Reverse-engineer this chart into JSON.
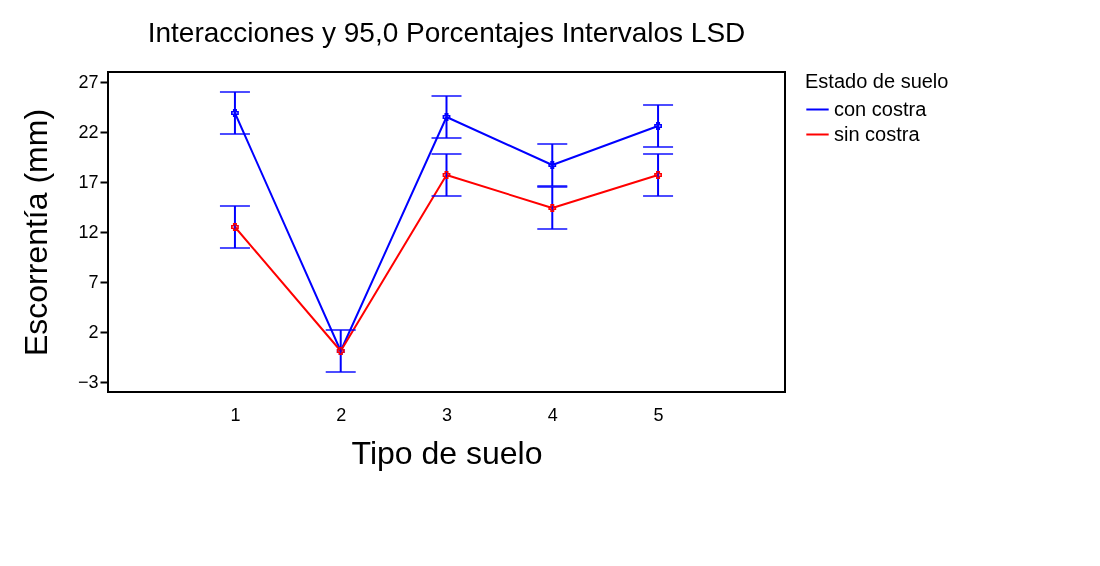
{
  "chart_data": {
    "type": "line",
    "title": "Interacciones y 95,0 Porcentajes Intervalos LSD",
    "xlabel": "Tipo de suelo",
    "ylabel": "Escorrentía (mm)",
    "legend_title": "Estado de suelo",
    "x": [
      1,
      2,
      3,
      4,
      5
    ],
    "series": [
      {
        "name": "con costra",
        "color": "#0000ff",
        "values": [
          23.9,
          0.1,
          23.5,
          18.7,
          22.6
        ],
        "errors": [
          2.1,
          2.1,
          2.1,
          2.1,
          2.1
        ]
      },
      {
        "name": "sin costra",
        "color": "#ff0000",
        "values": [
          12.5,
          0.1,
          17.7,
          14.4,
          17.7
        ],
        "errors": [
          2.1,
          null,
          2.1,
          2.1,
          2.1
        ]
      }
    ],
    "xlim": [
      -0.2,
      6.2
    ],
    "xticks": [
      1,
      2,
      3,
      4,
      5
    ],
    "ylim": [
      -4,
      28
    ],
    "yticks": [
      -3,
      2,
      7,
      12,
      17,
      22,
      27
    ],
    "grid": false,
    "legend": "top right",
    "marker": "cross",
    "line_style": "solid"
  }
}
